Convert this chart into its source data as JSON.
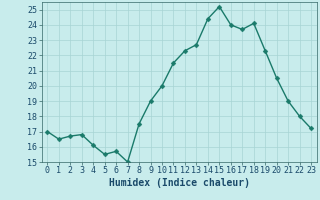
{
  "x": [
    0,
    1,
    2,
    3,
    4,
    5,
    6,
    7,
    8,
    9,
    10,
    11,
    12,
    13,
    14,
    15,
    16,
    17,
    18,
    19,
    20,
    21,
    22,
    23
  ],
  "y": [
    17.0,
    16.5,
    16.7,
    16.8,
    16.1,
    15.5,
    15.7,
    15.0,
    17.5,
    19.0,
    20.0,
    21.5,
    22.3,
    22.7,
    24.4,
    25.2,
    24.0,
    23.7,
    24.1,
    22.3,
    20.5,
    19.0,
    18.0,
    17.2
  ],
  "line_color": "#1a7a6a",
  "marker": "D",
  "marker_size": 2.5,
  "bg_color": "#c8ecec",
  "grid_color": "#a8d4d4",
  "xlabel": "Humidex (Indice chaleur)",
  "xlim": [
    -0.5,
    23.5
  ],
  "ylim": [
    15,
    25.5
  ],
  "yticks": [
    15,
    16,
    17,
    18,
    19,
    20,
    21,
    22,
    23,
    24,
    25
  ],
  "xticks": [
    0,
    1,
    2,
    3,
    4,
    5,
    6,
    7,
    8,
    9,
    10,
    11,
    12,
    13,
    14,
    15,
    16,
    17,
    18,
    19,
    20,
    21,
    22,
    23
  ],
  "xlabel_fontsize": 7,
  "tick_fontsize": 6,
  "line_width": 1.0,
  "title_color": "#1a4a6a",
  "spine_color": "#336666"
}
